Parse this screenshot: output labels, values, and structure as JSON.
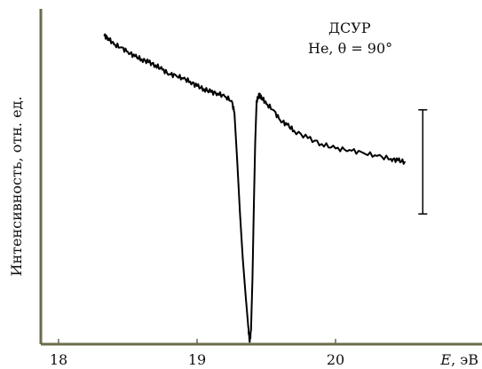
{
  "chart_data": {
    "type": "line",
    "title": "",
    "xlabel": "E, эВ",
    "xlabel_var": "E",
    "xlabel_unit": ", эВ",
    "ylabel": "Интенсивность, отн. ед.",
    "xlim": [
      18,
      20.95
    ],
    "ylim": [
      0,
      1
    ],
    "xticks": [
      "18",
      "19",
      "20"
    ],
    "grid": false,
    "annotations": {
      "line1": "ДСУР",
      "line2": "He, θ = 90°"
    },
    "error_bar": {
      "x": 20.63,
      "y_low": 0.42,
      "y_high": 0.77
    },
    "series": [
      {
        "x": [
          18.33,
          18.36,
          18.4,
          18.45,
          18.5,
          18.55,
          18.6,
          18.65,
          18.7,
          18.75,
          18.8,
          18.85,
          18.9,
          18.95,
          19.0,
          19.05,
          19.1,
          19.15,
          19.2,
          19.25,
          19.27,
          19.29,
          19.31,
          19.33,
          19.35,
          19.37,
          19.38,
          19.39,
          19.4,
          19.41,
          19.42,
          19.43,
          19.45,
          19.47,
          19.5,
          19.55,
          19.6,
          19.65,
          19.7,
          19.8,
          19.9,
          20.0,
          20.1,
          20.2,
          20.3,
          20.4,
          20.45,
          20.5
        ],
        "y": [
          1.02,
          1.01,
          0.99,
          0.98,
          0.965,
          0.95,
          0.94,
          0.93,
          0.92,
          0.905,
          0.89,
          0.885,
          0.875,
          0.865,
          0.85,
          0.84,
          0.83,
          0.825,
          0.815,
          0.8,
          0.76,
          0.6,
          0.42,
          0.27,
          0.15,
          0.04,
          -0.01,
          0.03,
          0.2,
          0.45,
          0.66,
          0.8,
          0.82,
          0.81,
          0.79,
          0.77,
          0.735,
          0.72,
          0.7,
          0.675,
          0.655,
          0.64,
          0.635,
          0.625,
          0.615,
          0.605,
          0.6,
          0.595
        ]
      }
    ]
  }
}
